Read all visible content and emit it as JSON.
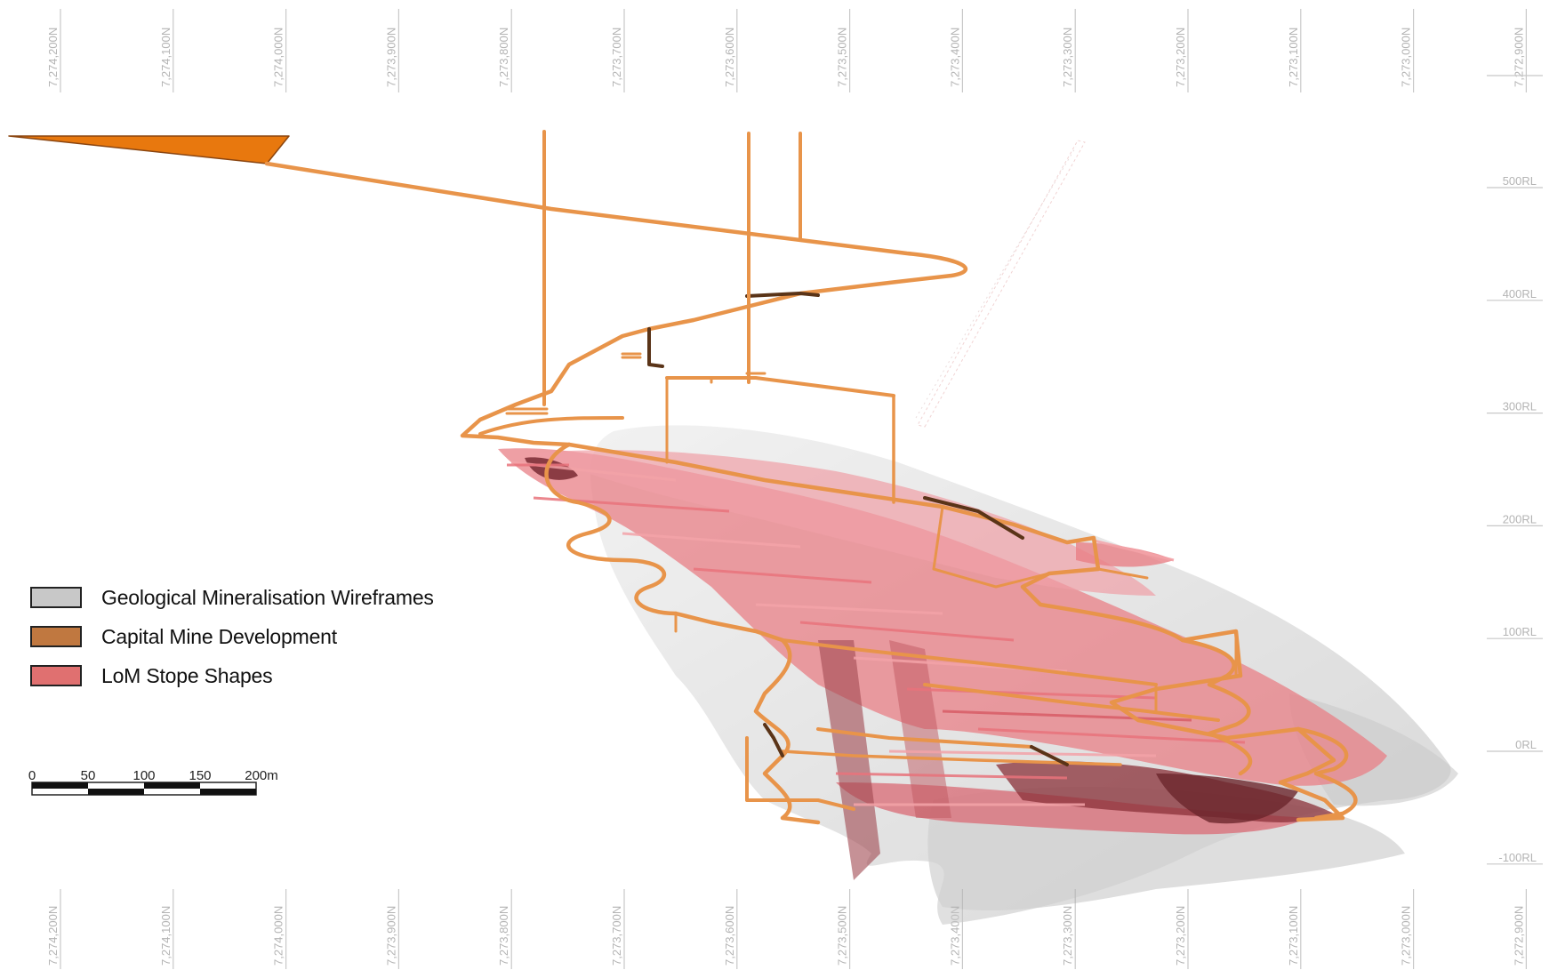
{
  "northing_labels": [
    "7,274,200N",
    "7,274,100N",
    "7,274,000N",
    "7,273,900N",
    "7,273,800N",
    "7,273,700N",
    "7,273,600N",
    "7,273,500N",
    "7,273,400N",
    "7,273,300N",
    "7,273,200N",
    "7,273,100N",
    "7,273,000N",
    "7,272,900N"
  ],
  "rl_labels": [
    "500RL",
    "400RL",
    "300RL",
    "200RL",
    "100RL",
    "0RL",
    "-100RL"
  ],
  "legend": [
    {
      "label": "Geological Mineralisation Wireframes",
      "color": "#c8c8c8"
    },
    {
      "label": "Capital Mine Development",
      "color": "#c07840"
    },
    {
      "label": "LoM Stope Shapes",
      "color": "#e07070"
    }
  ],
  "scale_bar": {
    "ticks": [
      "0",
      "50",
      "100",
      "150",
      "200m"
    ]
  },
  "colors": {
    "development": "#e8944a",
    "development_dark": "#5a3418",
    "stope": "#e87f86",
    "stope_dark": "#8a3038",
    "wireframe": "#c4c4c4",
    "grid": "#c8c8c8"
  }
}
